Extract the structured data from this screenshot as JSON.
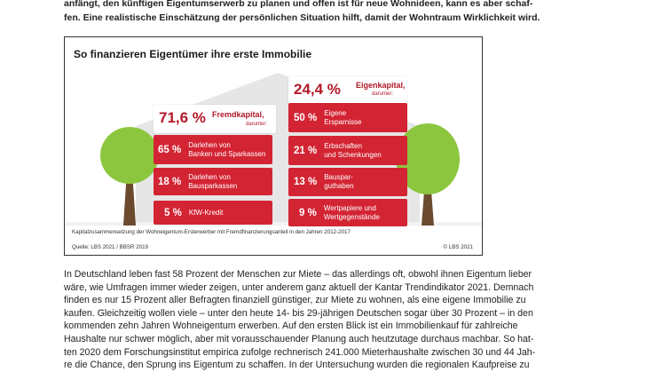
{
  "intro_lines": [
    "anfängt, den künftigen Eigentumserwerb zu planen und offen ist für neue Wohnideen, kann es aber schaf-",
    "fen. Eine realistische Einschätzung der persönlichen Situation hilft, damit der Wohntraum Wirklichkeit wird."
  ],
  "infographic": {
    "title": "So finanzieren Eigentümer ihre erste Immobilie",
    "fremd": {
      "value": "71,6 %",
      "label": "Fremdkapital,",
      "sub": "darunter:"
    },
    "eigen": {
      "value": "24,4 %",
      "label": "Eigenkapital,",
      "sub": "darunter:"
    },
    "left_items": [
      {
        "pct": "65 %",
        "label_lines": [
          "Darlehen von",
          "Banken und Sparkassen"
        ]
      },
      {
        "pct": "18 %",
        "label_lines": [
          "Darlehen von",
          "Bausparkassen"
        ]
      },
      {
        "pct": "5 %",
        "label_lines": [
          "KfW-Kredit"
        ]
      }
    ],
    "right_items": [
      {
        "pct": "50 %",
        "label_lines": [
          "Eigene",
          "Ersparnisse"
        ]
      },
      {
        "pct": "21 %",
        "label_lines": [
          "Erbschaften",
          "und Schenkungen"
        ]
      },
      {
        "pct": "13 %",
        "label_lines": [
          "Bauspar-",
          "guthaben"
        ]
      },
      {
        "pct": "9 %",
        "label_lines": [
          "Wertpapiere und",
          "Wertgegenstände"
        ]
      }
    ],
    "caption": "Kapitalzusammensetzung der Wohneigentum-Ersterwerber mit Fremdfinanzierungsanteil in den Jahren 2012-2017",
    "source": "Quelle: LBS 2021 / BBSR 2019",
    "copyright": "© LBS 2021",
    "colors": {
      "red": "#d32433",
      "dark_red": "#b3192a",
      "tree_green": "#8cc63f",
      "trunk": "#6b4a2e",
      "house_grey": "#e6e6e6"
    }
  },
  "body_lines": [
    "In Deutschland leben fast 58 Prozent der Menschen zur Miete – das allerdings oft, obwohl ihnen Eigentum lieber",
    "wäre, wie Umfragen immer wieder zeigen, unter anderem ganz aktuell der Kantar Trendindikator 2021. Demnach",
    "finden es nur 15 Prozent aller Befragten finanziell günstiger, zur Miete zu wohnen, als eine eigene Immobilie zu",
    "kaufen. Gleichzeitig wollen viele – unter den heute 14- bis 29-jährigen Deutschen sogar über 30 Prozent – in den",
    "kommenden zehn Jahren Wohneigentum erwerben. Auf den ersten Blick ist ein Immobilienkauf für zahlreiche",
    "Haushalte nur schwer möglich, aber mit vorausschauender Planung auch heutzutage durchaus machbar. So hat-",
    "ten 2020 dem Forschungsinstitut empirica zufolge rechnerisch 241.000 Mieterhaushalte zwischen 30 und 44 Jah-",
    "re die Chance, den Sprung ins Eigentum zu schaffen. In der Untersuchung wurden die regionalen Kaufpreise zu"
  ]
}
